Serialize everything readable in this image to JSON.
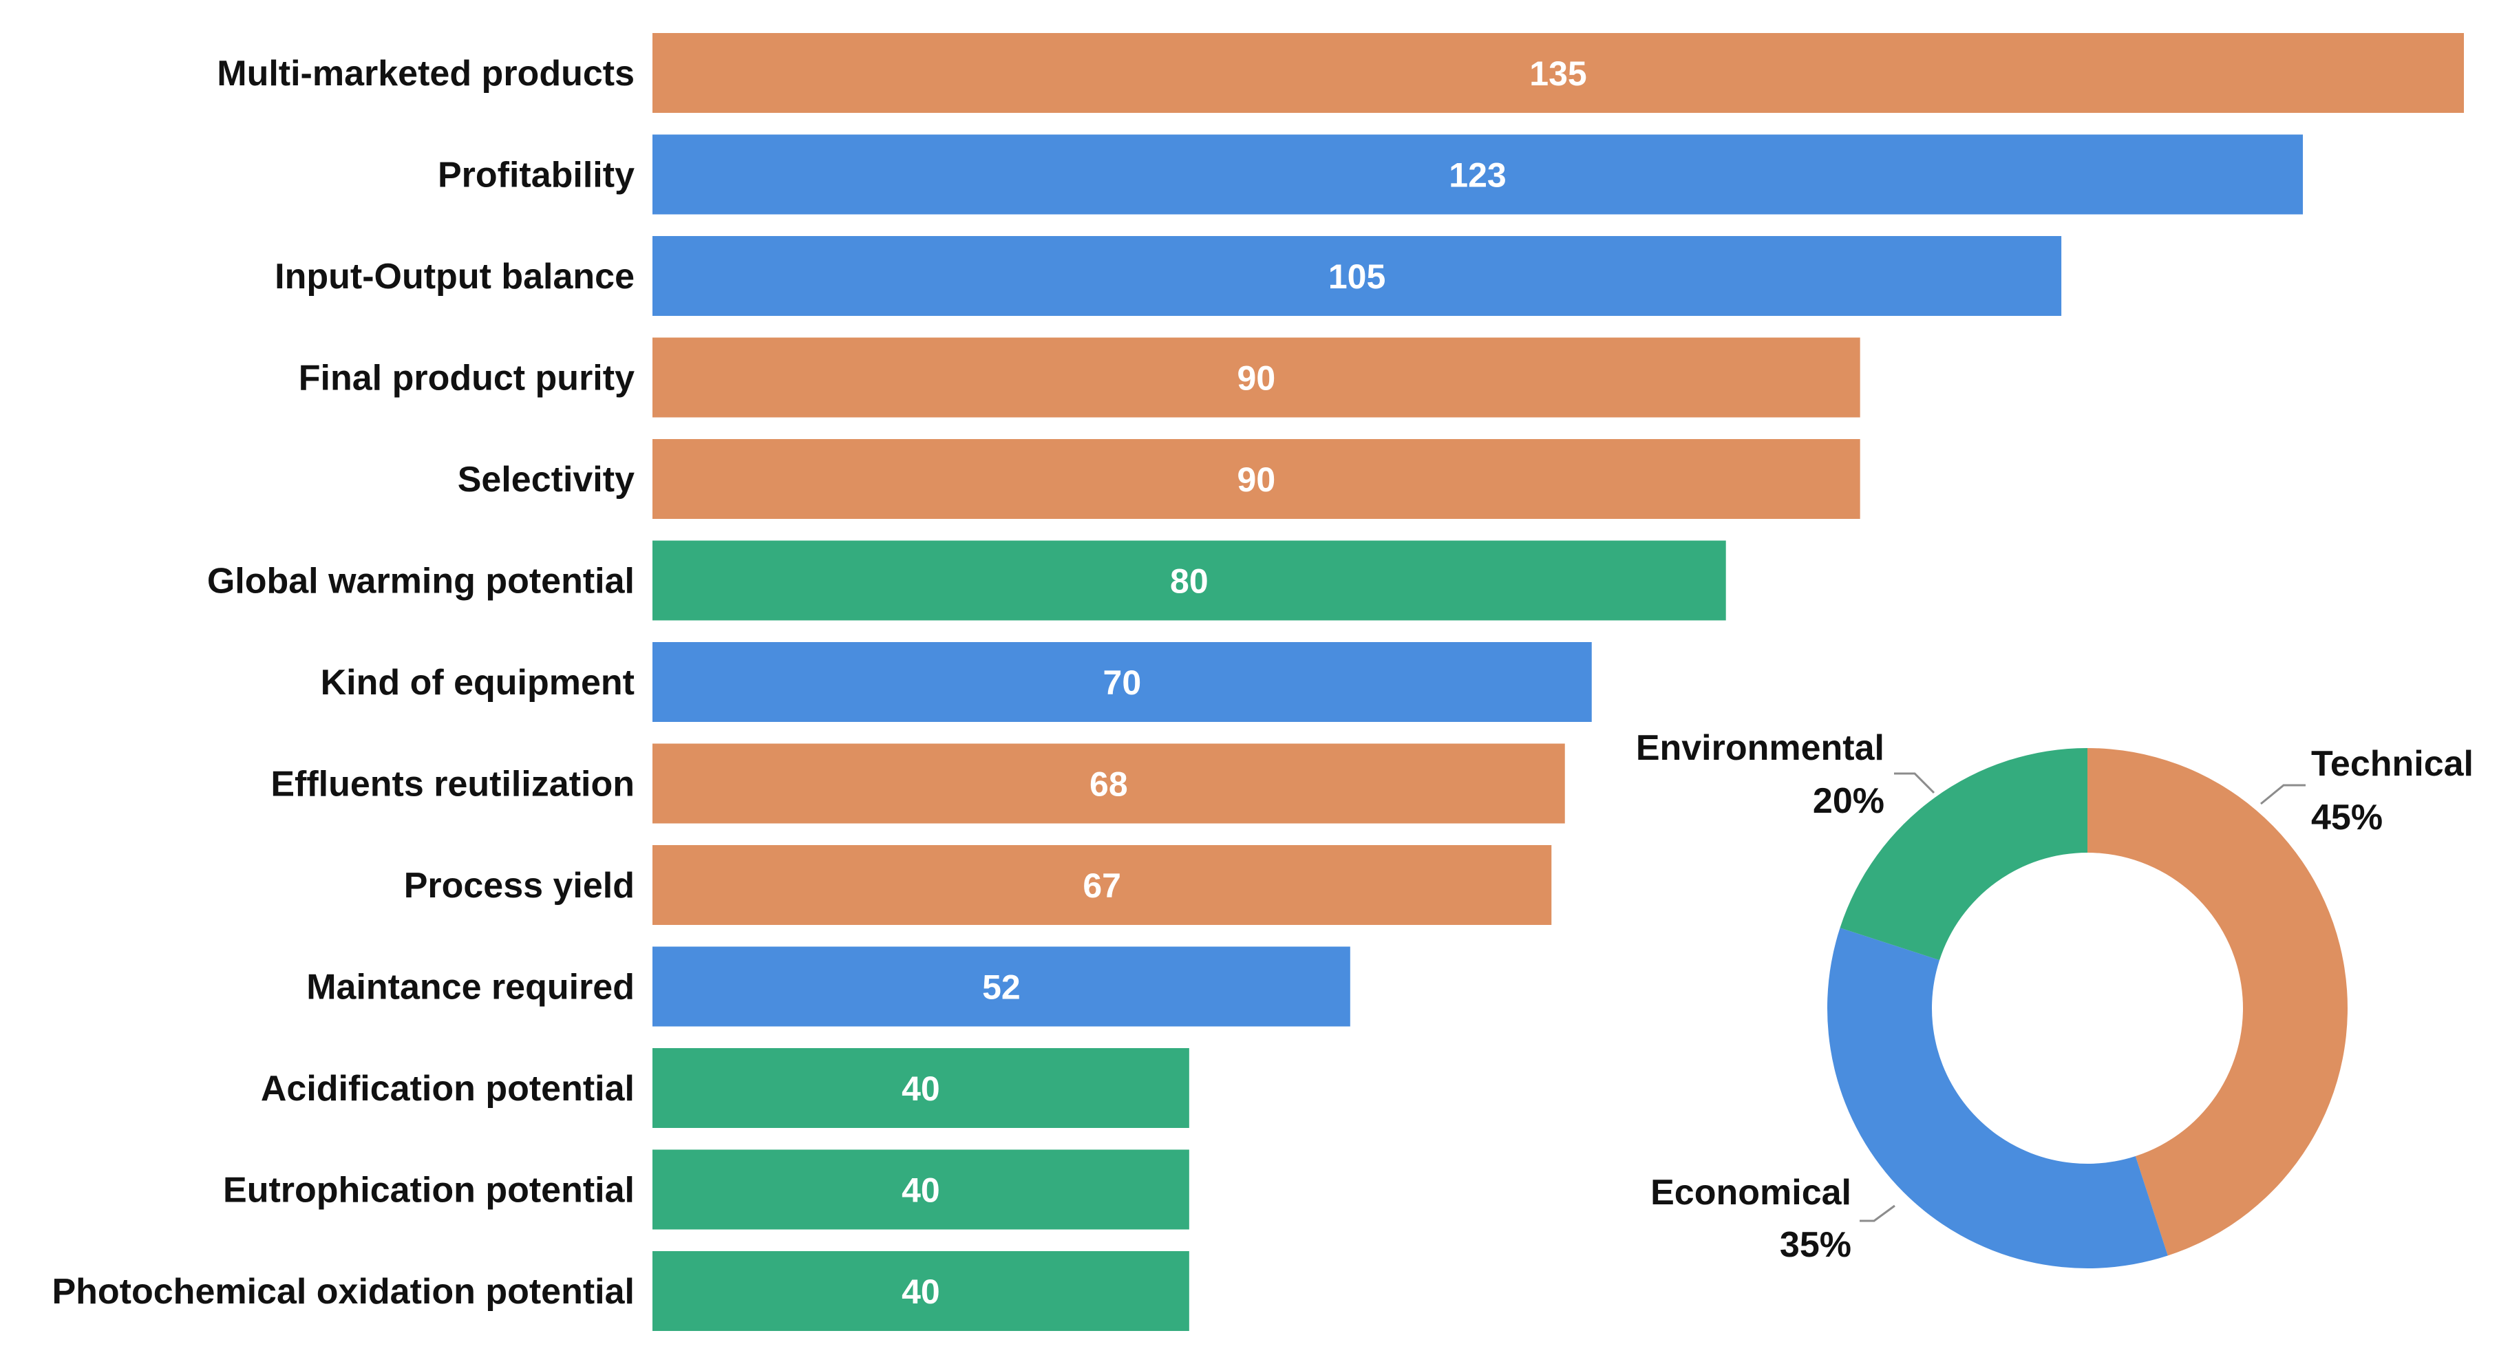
{
  "colors": {
    "technical": "#DE9060",
    "economical": "#4A8DDE",
    "environmental": "#34AC7E",
    "background": "#FFFFFF"
  },
  "chart_data": [
    {
      "type": "bar",
      "orientation": "horizontal",
      "title": "",
      "xlabel": "",
      "ylabel": "",
      "xlim": [
        0,
        135
      ],
      "grid": false,
      "categories": [
        "Multi-marketed products",
        "Profitability",
        "Input-Output balance",
        "Final product purity",
        "Selectivity",
        "Global warming potential",
        "Kind of equipment",
        "Effluents reutilization",
        "Process yield",
        "Maintance required",
        "Acidification potential",
        "Eutrophication potential",
        "Photochemical oxidation potential"
      ],
      "values": [
        135,
        123,
        105,
        90,
        90,
        80,
        70,
        68,
        67,
        52,
        40,
        40,
        40
      ],
      "value_labels": [
        "135",
        "123",
        "105",
        "90",
        "90",
        "80",
        "70",
        "68",
        "67",
        "52",
        "40",
        "40",
        "40"
      ],
      "groups": [
        "technical",
        "economical",
        "economical",
        "technical",
        "technical",
        "environmental",
        "economical",
        "technical",
        "technical",
        "economical",
        "environmental",
        "environmental",
        "environmental"
      ]
    },
    {
      "type": "pie",
      "donut": true,
      "legend": "none",
      "slices": [
        {
          "key": "technical",
          "name": "Technical",
          "value": 45,
          "label": "45%"
        },
        {
          "key": "economical",
          "name": "Economical",
          "value": 35,
          "label": "35%"
        },
        {
          "key": "environmental",
          "name": "Environmental",
          "value": 20,
          "label": "20%"
        }
      ]
    }
  ]
}
